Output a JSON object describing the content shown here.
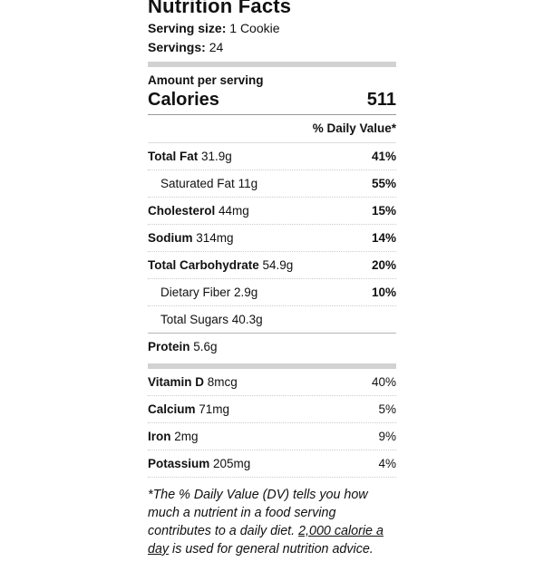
{
  "label": {
    "title": "Nutrition Facts",
    "serving_size_label": "Serving size:",
    "serving_size_value": "1 Cookie",
    "servings_label": "Servings:",
    "servings_value": "24",
    "amount_per_serving": "Amount per serving",
    "calories_label": "Calories",
    "calories_value": "511",
    "daily_value_header": "% Daily Value*",
    "nutrients": [
      {
        "name": "Total Fat",
        "amount": "31.9g",
        "dv": "41%",
        "indent": false
      },
      {
        "name": "Saturated Fat",
        "amount": "11g",
        "dv": "55%",
        "indent": true
      },
      {
        "name": "Cholesterol",
        "amount": "44mg",
        "dv": "15%",
        "indent": false
      },
      {
        "name": "Sodium",
        "amount": "314mg",
        "dv": "14%",
        "indent": false
      },
      {
        "name": "Total Carbohydrate",
        "amount": "54.9g",
        "dv": "20%",
        "indent": false
      },
      {
        "name": "Dietary Fiber",
        "amount": "2.9g",
        "dv": "10%",
        "indent": true
      },
      {
        "name": "Total Sugars",
        "amount": "40.3g",
        "dv": "",
        "indent": true
      },
      {
        "name": "Protein",
        "amount": "5.6g",
        "dv": "",
        "indent": false
      }
    ],
    "micronutrients": [
      {
        "name": "Vitamin D",
        "amount": "8mcg",
        "dv": "40%",
        "indent": false
      },
      {
        "name": "Calcium",
        "amount": "71mg",
        "dv": "5%",
        "indent": false
      },
      {
        "name": "Iron",
        "amount": "2mg",
        "dv": "9%",
        "indent": false
      },
      {
        "name": "Potassium",
        "amount": "205mg",
        "dv": "4%",
        "indent": false
      }
    ],
    "footnote_prefix": "*The % Daily Value (DV) tells you how much a nutrient in a food serving contributes to a daily diet. ",
    "footnote_link": "2,000 calorie a day",
    "footnote_suffix": " is used for general nutrition advice."
  },
  "colors": {
    "text": "#111111",
    "thick_bar": "#d2d2d2",
    "divider_solid": "#999999",
    "divider_light": "#dddddd",
    "divider_dotted": "#cccccc"
  }
}
